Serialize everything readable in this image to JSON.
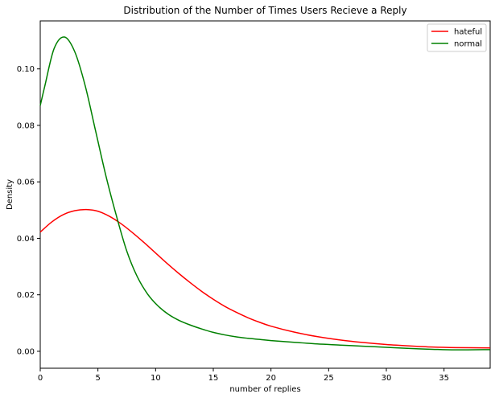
{
  "chart_data": {
    "type": "line",
    "title": "Distribution of the Number of Times Users Recieve a Reply",
    "xlabel": "number of replies",
    "ylabel": "Density",
    "xlim": [
      0,
      39
    ],
    "ylim": [
      -0.006,
      0.117
    ],
    "x_ticks": [
      0,
      5,
      10,
      15,
      20,
      25,
      30,
      35
    ],
    "x_tick_labels": [
      "0",
      "5",
      "10",
      "15",
      "20",
      "25",
      "30",
      "35"
    ],
    "y_ticks": [
      0.0,
      0.02,
      0.04,
      0.06,
      0.08,
      0.1
    ],
    "y_tick_labels": [
      "0.00",
      "0.02",
      "0.04",
      "0.06",
      "0.08",
      "0.10"
    ],
    "grid": false,
    "legend_position": "top-right",
    "series": [
      {
        "name": "hateful",
        "color": "#ff0000",
        "x": [
          0,
          1,
          2,
          3,
          4,
          5,
          6,
          7,
          8,
          9,
          10,
          11,
          12,
          13,
          14,
          15,
          16,
          17,
          18,
          19,
          20,
          22,
          24,
          26,
          28,
          30,
          32,
          34,
          36,
          39
        ],
        "y": [
          0.0422,
          0.0458,
          0.0484,
          0.0498,
          0.0502,
          0.0496,
          0.0478,
          0.0452,
          0.042,
          0.0385,
          0.0348,
          0.0311,
          0.0276,
          0.0243,
          0.0212,
          0.0184,
          0.0159,
          0.0138,
          0.0119,
          0.0103,
          0.0089,
          0.0068,
          0.0052,
          0.004,
          0.0031,
          0.0024,
          0.0019,
          0.0015,
          0.0013,
          0.0012
        ]
      },
      {
        "name": "normal",
        "color": "#008000",
        "x": [
          0,
          0.4,
          1.2,
          2.1,
          3.0,
          3.9,
          4.8,
          5.7,
          6.6,
          7.5,
          8.4,
          9.3,
          10.2,
          11.1,
          12,
          13,
          14,
          15,
          16,
          17,
          18,
          19,
          20,
          22,
          24,
          26,
          28,
          30,
          32,
          34,
          36,
          39
        ],
        "y": [
          0.087,
          0.094,
          0.1072,
          0.1113,
          0.106,
          0.094,
          0.078,
          0.062,
          0.048,
          0.0355,
          0.0265,
          0.0203,
          0.0161,
          0.0131,
          0.011,
          0.0093,
          0.0079,
          0.0067,
          0.0058,
          0.0051,
          0.0046,
          0.0042,
          0.0038,
          0.0032,
          0.0026,
          0.0022,
          0.0018,
          0.0014,
          0.001,
          0.0007,
          0.0005,
          0.0006
        ]
      }
    ]
  }
}
